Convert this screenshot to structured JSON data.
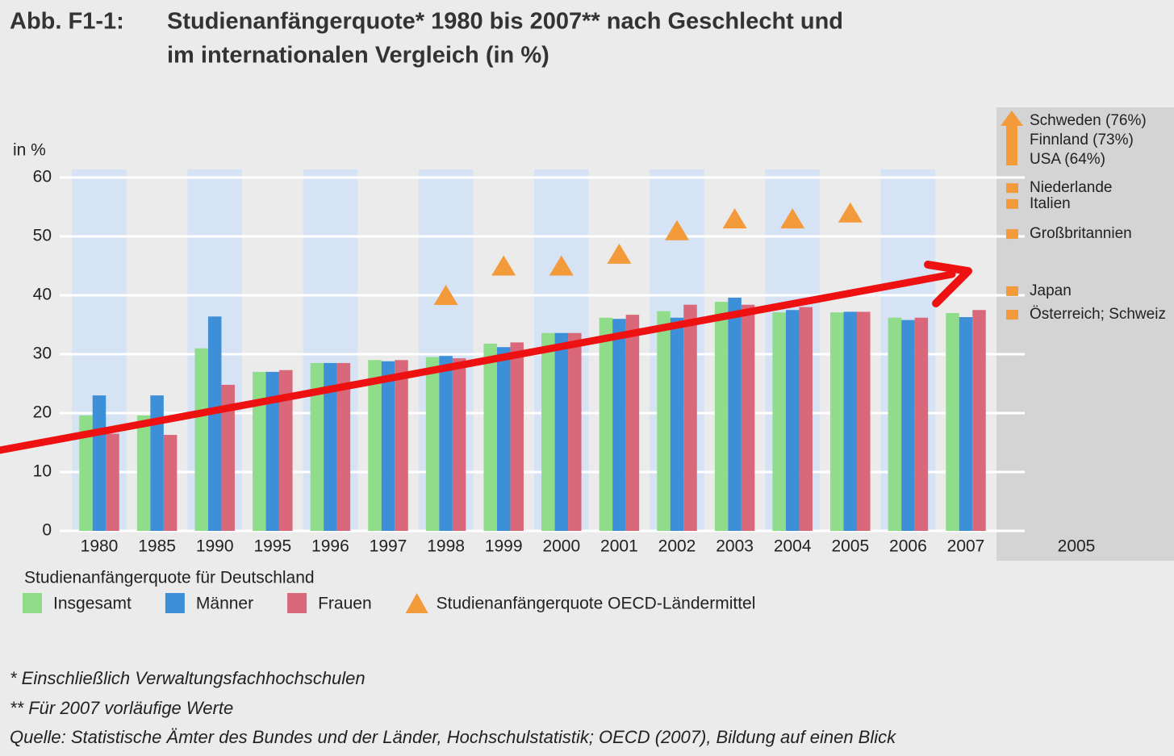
{
  "chart_data": {
    "type": "bar",
    "figure_label": "Abb. F1-1:",
    "title": [
      "Studienanfängerquote* 1980 bis 2007** nach Geschlecht und",
      "im internationalen Vergleich (in %)"
    ],
    "y_label": "in %",
    "categories": [
      "1980",
      "1985",
      "1990",
      "1995",
      "1996",
      "1997",
      "1998",
      "1999",
      "2000",
      "2001",
      "2002",
      "2003",
      "2004",
      "2005",
      "2006",
      "2007"
    ],
    "series": [
      {
        "name": "Insgesamt",
        "color": "#8fdc8b",
        "values": [
          19.6,
          19.6,
          31,
          27,
          28.5,
          29,
          29.5,
          31.8,
          33.6,
          36.2,
          37.3,
          38.9,
          37.1,
          37.1,
          36.2,
          37
        ]
      },
      {
        "name": "Männer",
        "color": "#3d8fd8",
        "values": [
          23,
          23,
          36.4,
          27,
          28.5,
          28.8,
          29.7,
          31.2,
          33.6,
          36,
          36.2,
          39.6,
          37.5,
          37.2,
          35.8,
          36.3
        ]
      },
      {
        "name": "Frauen",
        "color": "#d9687b",
        "values": [
          16.5,
          16.3,
          24.8,
          27.3,
          28.5,
          29,
          29.3,
          32,
          33.6,
          36.7,
          38.4,
          38.4,
          38,
          37.2,
          36.2,
          37.5
        ]
      },
      {
        "name": "Studienanfängerquote OECD-Ländermittel",
        "type": "scatter",
        "color": "#f39a3b",
        "values": [
          null,
          null,
          null,
          null,
          null,
          null,
          40,
          45,
          45,
          47,
          51,
          53,
          53,
          54,
          null,
          null
        ]
      }
    ],
    "legend_title": "Studienanfängerquote für Deutschland",
    "ylim": [
      0,
      60
    ],
    "yticks": [
      0,
      10,
      20,
      30,
      40,
      50,
      60
    ],
    "grid": true,
    "international": {
      "label": "2005",
      "color": "#f39a3b",
      "entries": [
        {
          "label": "Schweden (76%)",
          "value": 76
        },
        {
          "label": "Finnland (73%)",
          "value": 73
        },
        {
          "label": "USA (64%)",
          "value": 64
        },
        {
          "label": "Niederlande",
          "value": 58.2
        },
        {
          "label": "Italien",
          "value": 55.5
        },
        {
          "label": "Großbritannien",
          "value": 50.4
        },
        {
          "label": "Japan",
          "value": 40.7
        },
        {
          "label": "Österreich; Schweiz",
          "value": 36.7
        }
      ]
    },
    "footnotes": [
      "* Einschließlich Verwaltungsfachhochschulen",
      "** Für 2007 vorläufige Werte",
      "Quelle: Statistische Ämter des Bundes und der Länder, Hochschulstatistik; OECD (2007), Bildung auf einen Blick"
    ]
  }
}
